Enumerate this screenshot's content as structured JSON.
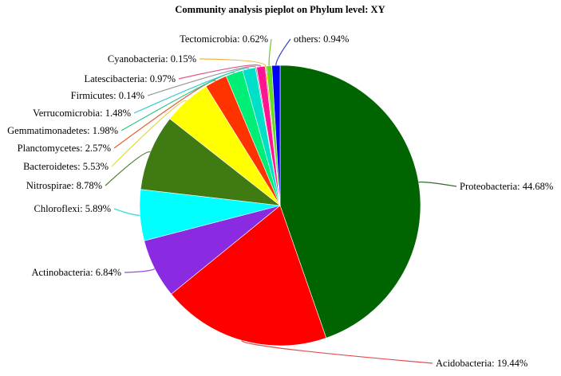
{
  "chart_data": {
    "type": "pie",
    "title": "Community analysis pieplot on Phylum level: XY",
    "slices": [
      {
        "name": "Proteobacteria",
        "value": 44.68,
        "label": "Proteobacteria: 44.68%",
        "color": "#006400",
        "line_color": "#2e6b2e"
      },
      {
        "name": "Acidobacteria",
        "value": 19.44,
        "label": "Acidobacteria: 19.44%",
        "color": "#ff0000",
        "line_color": "#e05050"
      },
      {
        "name": "Actinobacteria",
        "value": 6.84,
        "label": "Actinobacteria: 6.84%",
        "color": "#8a2be2",
        "line_color": "#9b4ddb"
      },
      {
        "name": "Chloroflexi",
        "value": 5.89,
        "label": "Chloroflexi: 5.89%",
        "color": "#00ffff",
        "line_color": "#33dddd"
      },
      {
        "name": "Nitrospirae",
        "value": 8.78,
        "label": "Nitrospirae: 8.78%",
        "color": "#3f7a12",
        "line_color": "#4f7f2a"
      },
      {
        "name": "Bacteroidetes",
        "value": 5.53,
        "label": "Bacteroidetes: 5.53%",
        "color": "#ffff00",
        "line_color": "#e6d94d"
      },
      {
        "name": "Planctomycetes",
        "value": 2.57,
        "label": "Planctomycetes: 2.57%",
        "color": "#ff3300",
        "line_color": "#e65c33"
      },
      {
        "name": "Gemmatimonadetes",
        "value": 1.98,
        "label": "Gemmatimonadetes: 1.98%",
        "color": "#00ee76",
        "line_color": "#33cc88"
      },
      {
        "name": "Verrucomicrobia",
        "value": 1.48,
        "label": "Verrucomicrobia: 1.48%",
        "color": "#00e0c8",
        "line_color": "#33cccc"
      },
      {
        "name": "Firmicutes",
        "value": 0.14,
        "label": "Firmicutes: 0.14%",
        "color": "#999999",
        "line_color": "#999999"
      },
      {
        "name": "Latescibacteria",
        "value": 0.97,
        "label": "Latescibacteria: 0.97%",
        "color": "#ff1493",
        "line_color": "#e05590"
      },
      {
        "name": "Cyanobacteria",
        "value": 0.15,
        "label": "Cyanobacteria: 0.15%",
        "color": "#ffa500",
        "line_color": "#f0b040"
      },
      {
        "name": "Tectomicrobia",
        "value": 0.62,
        "label": "Tectomicrobia: 0.62%",
        "color": "#66dd22",
        "line_color": "#66cc33"
      },
      {
        "name": "others",
        "value": 0.94,
        "label": "others: 0.94%",
        "color": "#0000ff",
        "line_color": "#3344cc"
      }
    ]
  }
}
